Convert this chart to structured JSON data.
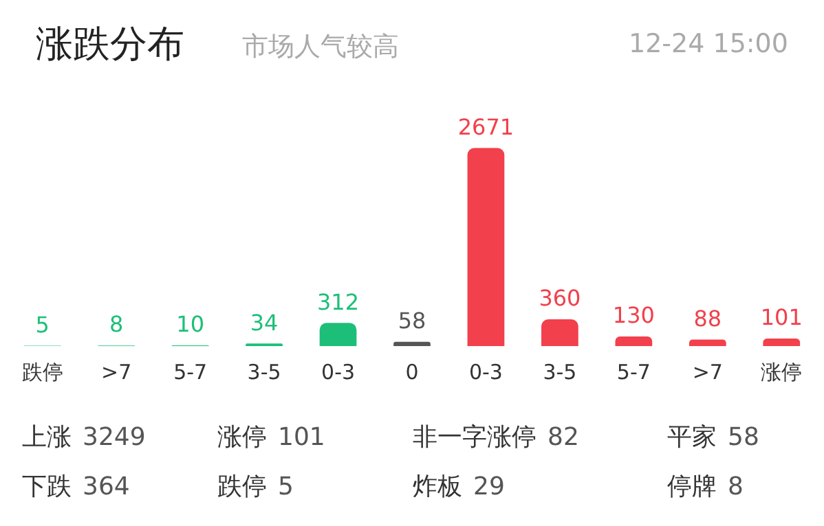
{
  "chart_data": {
    "type": "bar",
    "title": "涨跌分布",
    "subtitle": "市场人气较高",
    "categories": [
      "跌停",
      ">7",
      "5-7",
      "3-5",
      "0-3",
      "0",
      "0-3",
      "3-5",
      "5-7",
      ">7",
      "涨停"
    ],
    "values": [
      5,
      8,
      10,
      34,
      312,
      58,
      2671,
      360,
      130,
      88,
      101
    ],
    "colors": [
      "#1dbf78",
      "#1dbf78",
      "#1dbf78",
      "#1dbf78",
      "#1dbf78",
      "#555555",
      "#f2404c",
      "#f2404c",
      "#f2404c",
      "#f2404c",
      "#f2404c"
    ],
    "data_labels": true,
    "grid": false,
    "legend": false,
    "annotations": [
      "12-24 15:00",
      "上涨 3249",
      "涨停 101",
      "非一字涨停 82",
      "平家 58",
      "下跌 364",
      "跌停 5",
      "炸板 29",
      "停牌 8"
    ]
  }
}
